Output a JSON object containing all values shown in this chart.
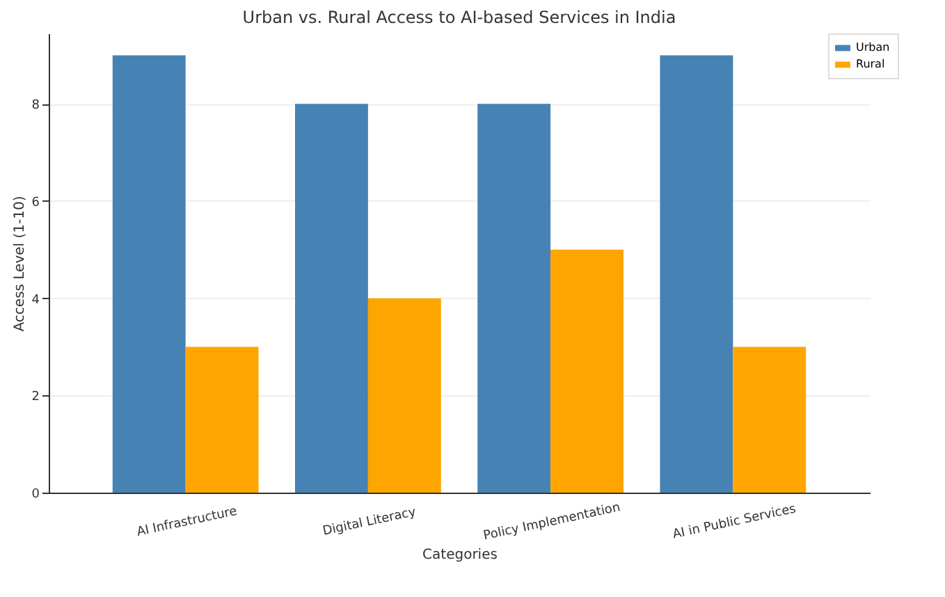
{
  "chart_data": {
    "type": "bar",
    "title": "Urban vs. Rural Access to AI-based Services in India",
    "xlabel": "Categories",
    "ylabel": "Access Level (1-10)",
    "categories": [
      "AI Infrastructure",
      "Digital Literacy",
      "Policy Implementation",
      "AI in Public Services"
    ],
    "series": [
      {
        "name": "Urban",
        "color": "#4682b4",
        "values": [
          9,
          8,
          8,
          9
        ]
      },
      {
        "name": "Rural",
        "color": "#ffa500",
        "values": [
          3,
          4,
          5,
          3
        ]
      }
    ],
    "ylim": [
      0,
      9.45
    ],
    "yticks": [
      0,
      2,
      4,
      6,
      8
    ],
    "grid": "y",
    "legend": "top right"
  }
}
